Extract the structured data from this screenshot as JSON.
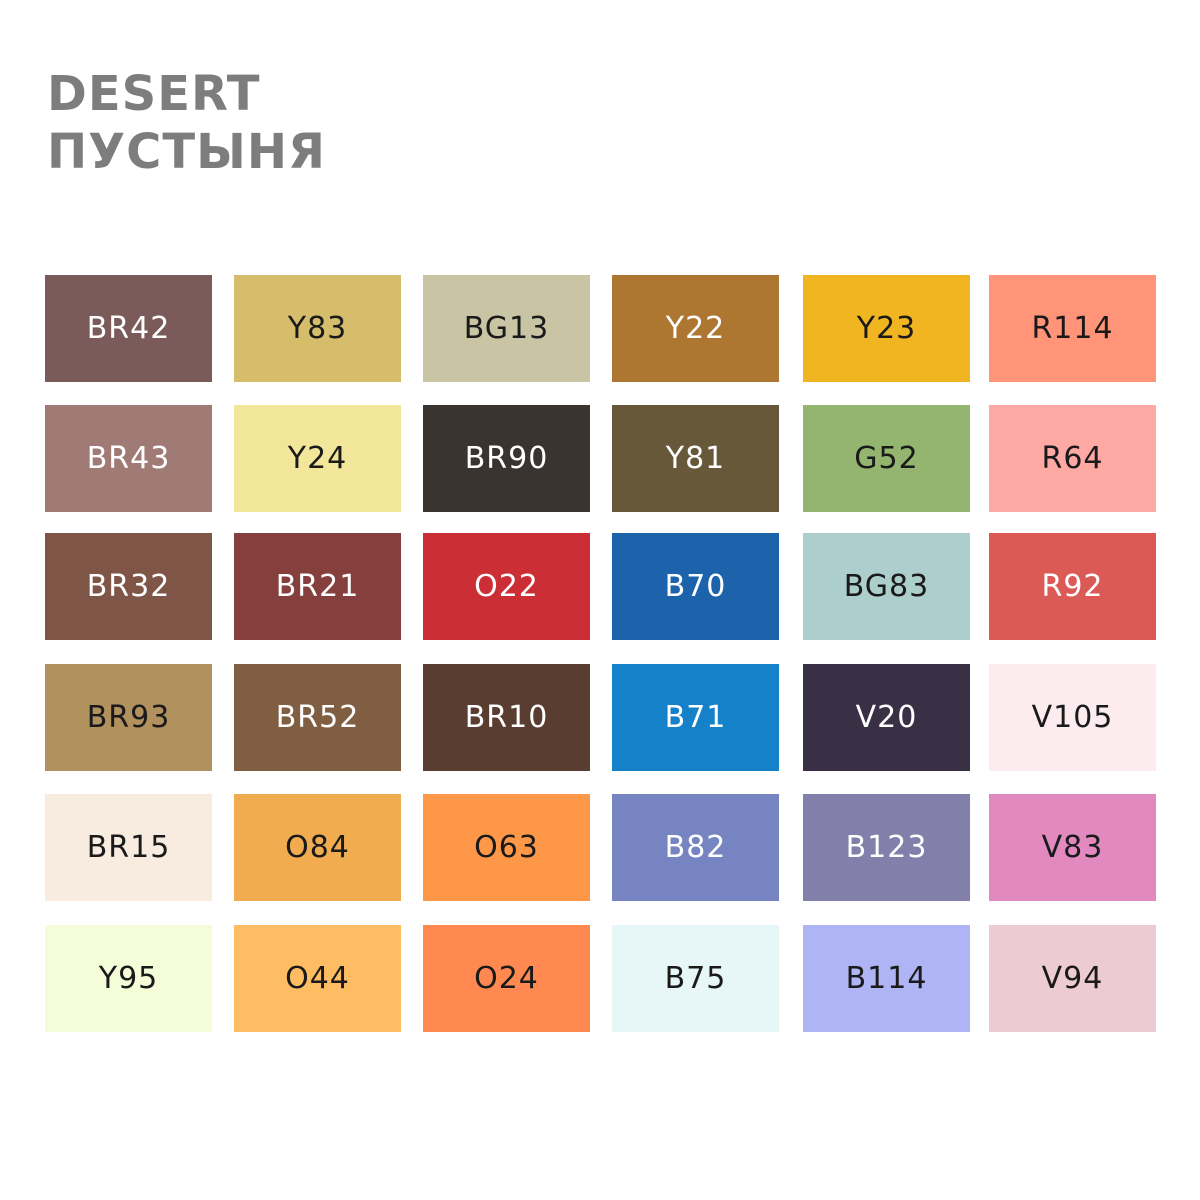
{
  "header": {
    "title": "DESERT",
    "subtitle": "ПУСТЫНЯ"
  },
  "swatches": [
    [
      {
        "label": "BR42",
        "color": "#7b5b59",
        "text_color": "#ffffff"
      },
      {
        "label": "Y83",
        "color": "#d6bd6c",
        "text_color": "#1a1a1a"
      },
      {
        "label": "BG13",
        "color": "#c9c4a3",
        "text_color": "#1a1a1a"
      },
      {
        "label": "Y22",
        "color": "#ad7732",
        "text_color": "#ffffff"
      },
      {
        "label": "Y23",
        "color": "#f0b520",
        "text_color": "#1a1a1a"
      },
      {
        "label": "R114",
        "color": "#ff9478",
        "text_color": "#1a1a1a"
      }
    ],
    [
      {
        "label": "BR43",
        "color": "#a07a75",
        "text_color": "#ffffff"
      },
      {
        "label": "Y24",
        "color": "#f2e69b",
        "text_color": "#1a1a1a"
      },
      {
        "label": "BR90",
        "color": "#3a3431",
        "text_color": "#ffffff"
      },
      {
        "label": "Y81",
        "color": "#665839",
        "text_color": "#ffffff"
      },
      {
        "label": "G52",
        "color": "#93b56f",
        "text_color": "#1a1a1a"
      },
      {
        "label": "R64",
        "color": "#ffa9a5",
        "text_color": "#1a1a1a"
      }
    ],
    [
      {
        "label": "BR32",
        "color": "#7f5548",
        "text_color": "#ffffff"
      },
      {
        "label": "BR21",
        "color": "#853f3c",
        "text_color": "#ffffff"
      },
      {
        "label": "O22",
        "color": "#cb2e34",
        "text_color": "#ffffff"
      },
      {
        "label": "B70",
        "color": "#1c63ab",
        "text_color": "#ffffff"
      },
      {
        "label": "BG83",
        "color": "#accecd",
        "text_color": "#1a1a1a"
      },
      {
        "label": "R92",
        "color": "#dc5a55",
        "text_color": "#ffffff"
      }
    ],
    [
      {
        "label": "BR93",
        "color": "#b1915d",
        "text_color": "#1a1a1a"
      },
      {
        "label": "BR52",
        "color": "#805e42",
        "text_color": "#ffffff"
      },
      {
        "label": "BR10",
        "color": "#5a3d31",
        "text_color": "#ffffff"
      },
      {
        "label": "B71",
        "color": "#1581c9",
        "text_color": "#ffffff"
      },
      {
        "label": "V20",
        "color": "#3a3045",
        "text_color": "#ffffff"
      },
      {
        "label": "V105",
        "color": "#fcebef",
        "text_color": "#1a1a1a"
      }
    ],
    [
      {
        "label": "BR15",
        "color": "#f8ece1",
        "text_color": "#1a1a1a"
      },
      {
        "label": "O84",
        "color": "#f0ac4e",
        "text_color": "#1a1a1a"
      },
      {
        "label": "O63",
        "color": "#ff9748",
        "text_color": "#1a1a1a"
      },
      {
        "label": "B82",
        "color": "#7685c1",
        "text_color": "#ffffff"
      },
      {
        "label": "B123",
        "color": "#837fab",
        "text_color": "#ffffff"
      },
      {
        "label": "V83",
        "color": "#e28ac0",
        "text_color": "#1a1a1a"
      }
    ],
    [
      {
        "label": "Y95",
        "color": "#f4fcd8",
        "text_color": "#1a1a1a"
      },
      {
        "label": "O44",
        "color": "#ffbd63",
        "text_color": "#1a1a1a"
      },
      {
        "label": "O24",
        "color": "#ff8950",
        "text_color": "#1a1a1a"
      },
      {
        "label": "B75",
        "color": "#e7f6f6",
        "text_color": "#1a1a1a"
      },
      {
        "label": "B114",
        "color": "#aeb4f4",
        "text_color": "#1a1a1a"
      },
      {
        "label": "V94",
        "color": "#eccbd3",
        "text_color": "#1a1a1a"
      }
    ]
  ]
}
